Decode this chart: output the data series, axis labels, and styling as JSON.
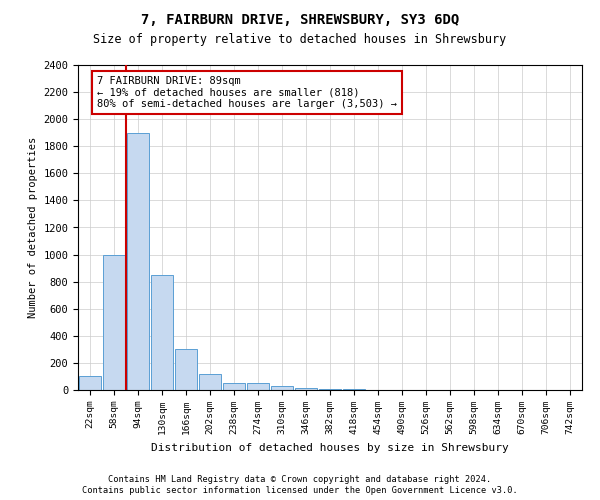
{
  "title": "7, FAIRBURN DRIVE, SHREWSBURY, SY3 6DQ",
  "subtitle": "Size of property relative to detached houses in Shrewsbury",
  "xlabel": "Distribution of detached houses by size in Shrewsbury",
  "ylabel": "Number of detached properties",
  "bin_labels": [
    "22sqm",
    "58sqm",
    "94sqm",
    "130sqm",
    "166sqm",
    "202sqm",
    "238sqm",
    "274sqm",
    "310sqm",
    "346sqm",
    "382sqm",
    "418sqm",
    "454sqm",
    "490sqm",
    "526sqm",
    "562sqm",
    "598sqm",
    "634sqm",
    "670sqm",
    "706sqm",
    "742sqm"
  ],
  "bar_heights": [
    100,
    1000,
    1900,
    850,
    300,
    120,
    50,
    50,
    30,
    15,
    10,
    5,
    3,
    2,
    1,
    1,
    0,
    0,
    0,
    0,
    0
  ],
  "bar_color": "#c6d9f0",
  "bar_edgecolor": "#5a9fd4",
  "vline_color": "#cc0000",
  "vline_pos": 1.5,
  "ylim": [
    0,
    2400
  ],
  "yticks": [
    0,
    200,
    400,
    600,
    800,
    1000,
    1200,
    1400,
    1600,
    1800,
    2000,
    2200,
    2400
  ],
  "annotation_text": "7 FAIRBURN DRIVE: 89sqm\n← 19% of detached houses are smaller (818)\n80% of semi-detached houses are larger (3,503) →",
  "annotation_box_color": "#ffffff",
  "annotation_box_edgecolor": "#cc0000",
  "footnote1": "Contains HM Land Registry data © Crown copyright and database right 2024.",
  "footnote2": "Contains public sector information licensed under the Open Government Licence v3.0.",
  "background_color": "#ffffff",
  "grid_color": "#cccccc"
}
